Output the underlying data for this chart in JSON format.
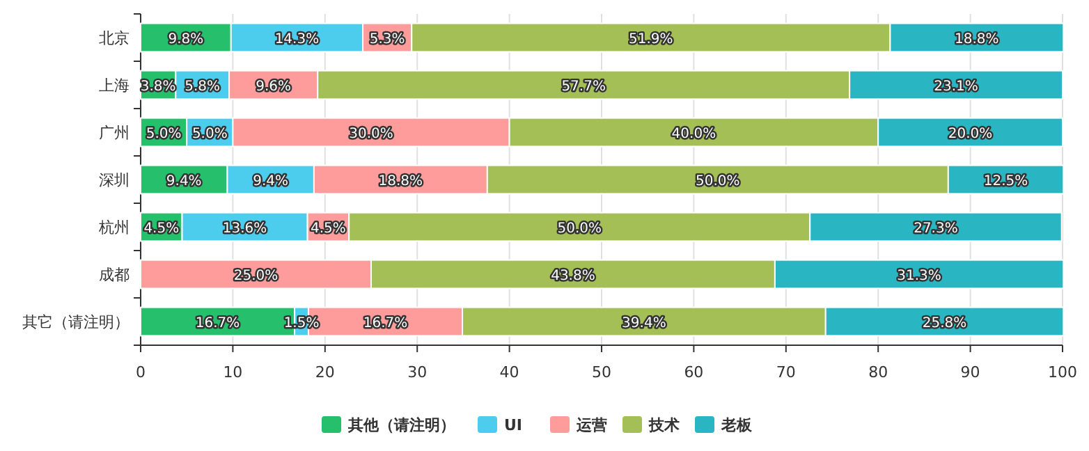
{
  "chart_data": {
    "type": "bar",
    "orientation": "horizontal",
    "stacked": true,
    "categories": [
      "北京",
      "上海",
      "广州",
      "深圳",
      "杭州",
      "成都",
      "其它（请注明）"
    ],
    "xlim": [
      0,
      100
    ],
    "xticks": [
      0,
      10,
      20,
      30,
      40,
      50,
      60,
      70,
      80,
      90,
      100
    ],
    "grid": "x",
    "legend": "bottom",
    "series": [
      {
        "name": "其他（请注明）",
        "color": "#26bf6b",
        "values": [
          9.8,
          3.8,
          5.0,
          9.4,
          4.5,
          null,
          16.7
        ],
        "value_labels": [
          "9.8%",
          "3.8%",
          "5.0%",
          "9.4%",
          "4.5%",
          null,
          "16.7%"
        ]
      },
      {
        "name": "UI",
        "color": "#4dcdee",
        "values": [
          14.3,
          5.8,
          5.0,
          9.4,
          13.6,
          null,
          1.5
        ],
        "value_labels": [
          "14.3%",
          "5.8%",
          "5.0%",
          "9.4%",
          "13.6%",
          null,
          "1.5%"
        ]
      },
      {
        "name": "运营",
        "color": "#fe9c9c",
        "values": [
          5.3,
          9.6,
          30.0,
          18.8,
          4.5,
          25.0,
          16.7
        ],
        "value_labels": [
          "5.3%",
          "9.6%",
          "30.0%",
          "18.8%",
          "4.5%",
          "25.0%",
          "16.7%"
        ]
      },
      {
        "name": "技术",
        "color": "#a4bf56",
        "values": [
          51.9,
          57.7,
          40.0,
          50.0,
          50.0,
          43.8,
          39.4
        ],
        "value_labels": [
          "51.9%",
          "57.7%",
          "40.0%",
          "50.0%",
          "50.0%",
          "43.8%",
          "39.4%"
        ]
      },
      {
        "name": "老板",
        "color": "#29b6c2",
        "values": [
          18.8,
          23.1,
          20.0,
          12.5,
          27.3,
          31.3,
          25.8
        ],
        "value_labels": [
          "18.8%",
          "23.1%",
          "20.0%",
          "12.5%",
          "27.3%",
          "31.3%",
          "25.8%"
        ]
      }
    ]
  }
}
